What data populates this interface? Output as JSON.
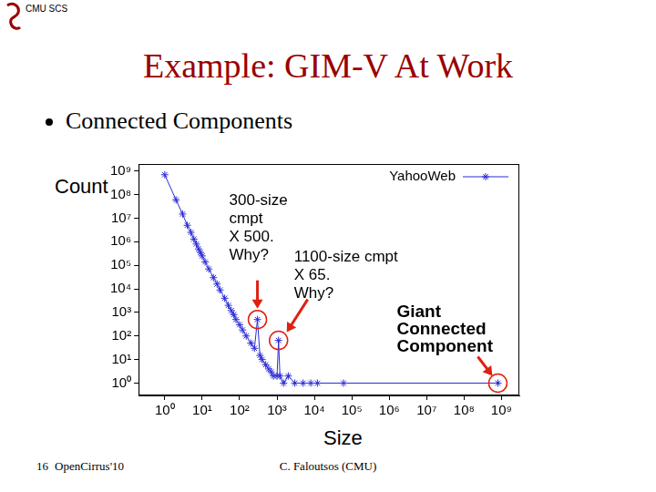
{
  "header": {
    "org": "CMU SCS",
    "title": "Example: GIM-V At Work",
    "bullet": "Connected Components"
  },
  "footer": {
    "page": "16",
    "left": "OpenCirrus'10",
    "center": "C. Faloutsos (CMU)"
  },
  "chart_data": {
    "type": "line",
    "x_label": "Size",
    "y_label": "Count",
    "log": true,
    "grid": false,
    "legend": "upper right",
    "marker": "star",
    "line_style": "solid",
    "x": [
      1,
      2,
      3,
      4,
      5,
      6,
      7,
      8,
      9,
      10,
      12,
      15,
      20,
      25,
      30,
      40,
      50,
      60,
      70,
      80,
      100,
      120,
      150,
      200,
      250,
      300,
      350,
      400,
      500,
      600,
      700,
      800,
      1000,
      1100,
      1200,
      1500,
      2000,
      3000,
      5000,
      8000,
      12000,
      60000,
      800000000
    ],
    "series": [
      {
        "name": "YahooWeb",
        "color": "#2b2bd6",
        "values": [
          700000000,
          60000000,
          15000000,
          5000000,
          2500000,
          1300000,
          800000,
          500000,
          350000,
          250000,
          140000,
          70000,
          30000,
          16000,
          9000,
          4000,
          2000,
          1200,
          800,
          500,
          300,
          180,
          100,
          50,
          30,
          500,
          15,
          10,
          6,
          4,
          3,
          2,
          2,
          65,
          2,
          1,
          2,
          1,
          1,
          1,
          1,
          1,
          1
        ]
      }
    ],
    "xlim": [
      0.2,
      3000000000
    ],
    "ylim": [
      0.3,
      2000000000
    ],
    "xticks": [
      {
        "value": 1,
        "label": "10⁰"
      },
      {
        "value": 10,
        "label": "10¹"
      },
      {
        "value": 100,
        "label": "10²"
      },
      {
        "value": 1000,
        "label": "10³"
      },
      {
        "value": 10000,
        "label": "10⁴"
      },
      {
        "value": 100000,
        "label": "10⁵"
      },
      {
        "value": 1000000,
        "label": "10⁶"
      },
      {
        "value": 10000000,
        "label": "10⁷"
      },
      {
        "value": 100000000,
        "label": "10⁸"
      },
      {
        "value": 1000000000,
        "label": "10⁹"
      }
    ],
    "yticks": [
      {
        "value": 1,
        "label": "10⁰"
      },
      {
        "value": 10,
        "label": "10¹"
      },
      {
        "value": 100,
        "label": "10²"
      },
      {
        "value": 1000,
        "label": "10³"
      },
      {
        "value": 10000,
        "label": "10⁴"
      },
      {
        "value": 100000,
        "label": "10⁵"
      },
      {
        "value": 1000000,
        "label": "10⁶"
      },
      {
        "value": 10000000,
        "label": "10⁷"
      },
      {
        "value": 100000000,
        "label": "10⁸"
      },
      {
        "value": 1000000000,
        "label": "10⁹"
      }
    ],
    "annotations": [
      {
        "text": "300-size\ncmpt\nX 500.\nWhy?",
        "x": 300,
        "y": 500
      },
      {
        "text": "1100-size cmpt\nX 65.\nWhy?",
        "x": 1100,
        "y": 65
      },
      {
        "text": "Giant\nConnected\nComponent",
        "x": 800000000,
        "y": 1
      }
    ]
  }
}
